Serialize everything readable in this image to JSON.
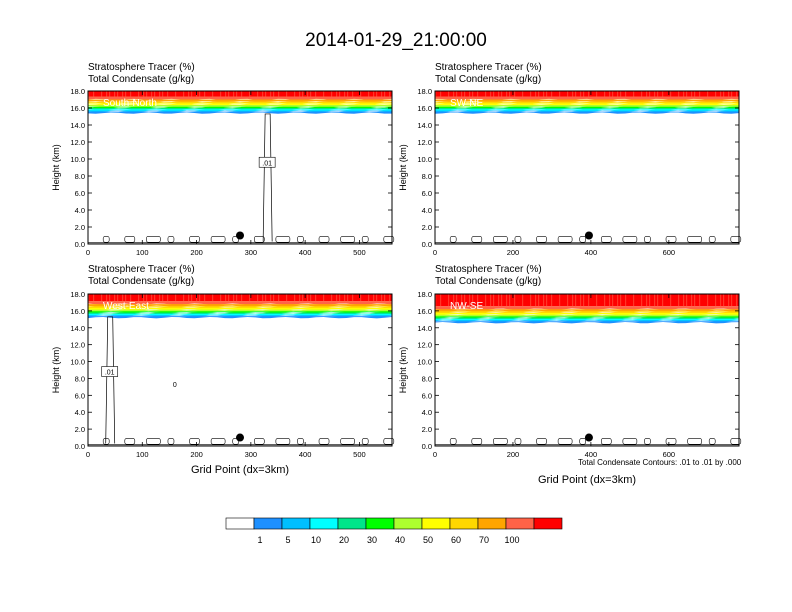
{
  "title": "2014-01-29_21:00:00",
  "panel_header": {
    "line1": "Stratosphere Tracer   (%)",
    "line2": "Total Condensate   (g/kg)"
  },
  "contour_note": "Total Condensate Contours: .01 to .01 by .000",
  "colorbar": {
    "colors": [
      "#ffffff",
      "#1e90ff",
      "#00bfff",
      "#00ffff",
      "#00e58a",
      "#00ff00",
      "#adff2f",
      "#ffff00",
      "#ffd700",
      "#ffa500",
      "#ff6347",
      "#ff0000"
    ],
    "labels": [
      "1",
      "5",
      "10",
      "20",
      "30",
      "40",
      "50",
      "60",
      "70",
      "100"
    ]
  },
  "chart_data": [
    {
      "type": "heatmap",
      "panel_label": "South-North",
      "ylabel": "Height (km)",
      "xlabel": "",
      "xlim": [
        0,
        560
      ],
      "ylim": [
        0,
        18
      ],
      "xticks": [
        0,
        100,
        200,
        300,
        400,
        500
      ],
      "yticks": [
        "0.0",
        "2.0",
        "4.0",
        "6.0",
        "8.0",
        "10.0",
        "12.0",
        "14.0",
        "16.0",
        "18.0"
      ],
      "tracer_base_km": 15.4,
      "marker": {
        "x": 280,
        "y": 1.0
      },
      "contour_label": {
        "text": ".01",
        "x": 330,
        "y": 9.5
      }
    },
    {
      "type": "heatmap",
      "panel_label": "SW-NE",
      "ylabel": "Height (km)",
      "xlabel": "",
      "xlim": [
        0,
        780
      ],
      "ylim": [
        0,
        18
      ],
      "xticks": [
        0,
        200,
        400,
        600
      ],
      "yticks": [
        "0.0",
        "2.0",
        "4.0",
        "6.0",
        "8.0",
        "10.0",
        "12.0",
        "14.0",
        "16.0",
        "18.0"
      ],
      "tracer_base_km": 15.4,
      "marker": {
        "x": 395,
        "y": 1.0
      }
    },
    {
      "type": "heatmap",
      "panel_label": "West-East",
      "ylabel": "Height (km)",
      "xlabel": "Grid Point (dx=3km)",
      "xlim": [
        0,
        560
      ],
      "ylim": [
        0,
        18
      ],
      "xticks": [
        0,
        100,
        200,
        300,
        400,
        500
      ],
      "yticks": [
        "0.0",
        "2.0",
        "4.0",
        "6.0",
        "8.0",
        "10.0",
        "12.0",
        "14.0",
        "16.0",
        "18.0"
      ],
      "tracer_base_km": 15.2,
      "marker": {
        "x": 280,
        "y": 1.0
      },
      "contour_label": {
        "text": ".01",
        "x": 40,
        "y": 8.7
      },
      "zero_label": {
        "text": "0",
        "x": 160,
        "y": 7.0
      }
    },
    {
      "type": "heatmap",
      "panel_label": "NW-SE",
      "ylabel": "Height (km)",
      "xlabel": "Grid Point (dx=3km)",
      "xlim": [
        0,
        780
      ],
      "ylim": [
        0,
        18
      ],
      "xticks": [
        0,
        200,
        400,
        600
      ],
      "yticks": [
        "0.0",
        "2.0",
        "4.0",
        "6.0",
        "8.0",
        "10.0",
        "12.0",
        "14.0",
        "16.0",
        "18.0"
      ],
      "tracer_base_km": 14.6,
      "marker": {
        "x": 395,
        "y": 1.0
      }
    }
  ]
}
